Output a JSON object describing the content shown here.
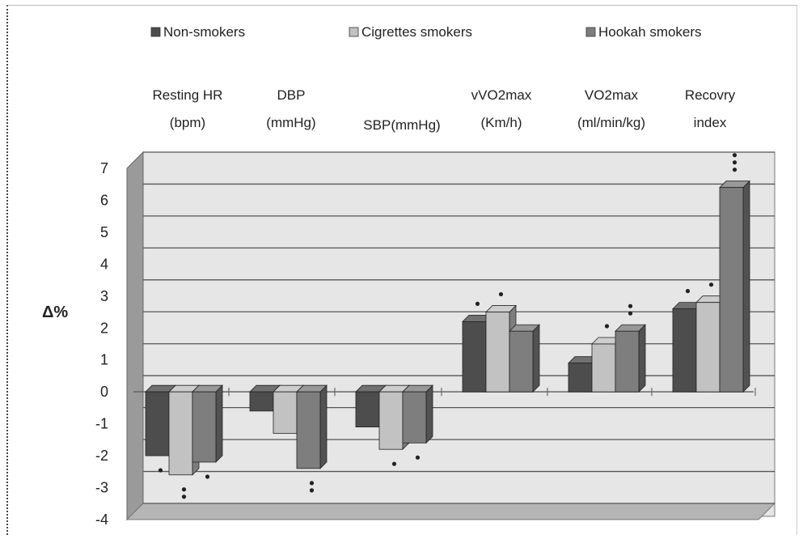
{
  "chart_data": {
    "type": "bar",
    "style": "3d-clustered-column",
    "ylabel": "Δ%",
    "ylim": [
      -4,
      7
    ],
    "yticks": [
      7,
      6,
      5,
      4,
      3,
      2,
      1,
      0,
      -1,
      -2,
      -3,
      -4
    ],
    "grid": true,
    "legend_position": "top",
    "categories": [
      {
        "line1": "Resting HR",
        "line2": "(bpm)"
      },
      {
        "line1": "DBP",
        "line2": "(mmHg)"
      },
      {
        "line1": "SBP(mmHg)",
        "line2": ""
      },
      {
        "line1": "vVO2max",
        "line2": "(Km/h)"
      },
      {
        "line1": "VO2max",
        "line2": "(ml/min/kg)"
      },
      {
        "line1": "Recovry",
        "line2": "index"
      }
    ],
    "series": [
      {
        "name": "Non-smokers",
        "color": "#4d4d4d",
        "values": [
          -2.0,
          -0.6,
          -1.1,
          2.2,
          0.9,
          2.6
        ],
        "significance": [
          1,
          0,
          0,
          1,
          0,
          1
        ]
      },
      {
        "name": "Cigrettes smokers",
        "color": "#c2c2c2",
        "values": [
          -2.6,
          -1.3,
          -1.8,
          2.5,
          1.5,
          2.8
        ],
        "significance": [
          2,
          0,
          1,
          1,
          1,
          1
        ]
      },
      {
        "name": "Hookah smokers",
        "color": "#7e7e7e",
        "values": [
          -2.2,
          -2.4,
          -1.6,
          1.9,
          1.9,
          6.4
        ],
        "significance": [
          1,
          2,
          1,
          0,
          2,
          3
        ]
      }
    ]
  }
}
